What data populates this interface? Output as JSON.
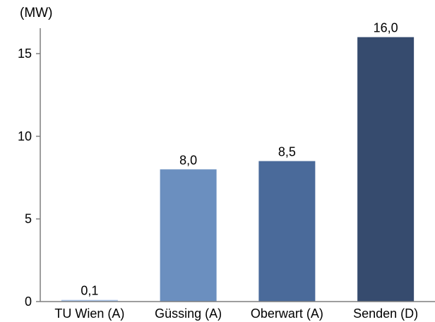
{
  "chart_data": {
    "type": "bar",
    "title": "",
    "unit_label": "(MW)",
    "xlabel": "",
    "ylabel": "",
    "categories": [
      "TU Wien (A)",
      "Güssing (A)",
      "Oberwart (A)",
      "Senden (D)"
    ],
    "values": [
      0.1,
      8.0,
      8.5,
      16.0
    ],
    "data_labels": [
      "0,1",
      "8,0",
      "8,5",
      "16,0"
    ],
    "bar_colors": [
      "#a9c4e8",
      "#6b8fbf",
      "#4a6a9a",
      "#364b6e"
    ],
    "ylim": [
      0,
      16.2
    ],
    "yticks": [
      0,
      5,
      10,
      15
    ],
    "ytick_labels": [
      "0",
      "5",
      "10",
      "15"
    ],
    "grid": false,
    "legend": "none"
  }
}
